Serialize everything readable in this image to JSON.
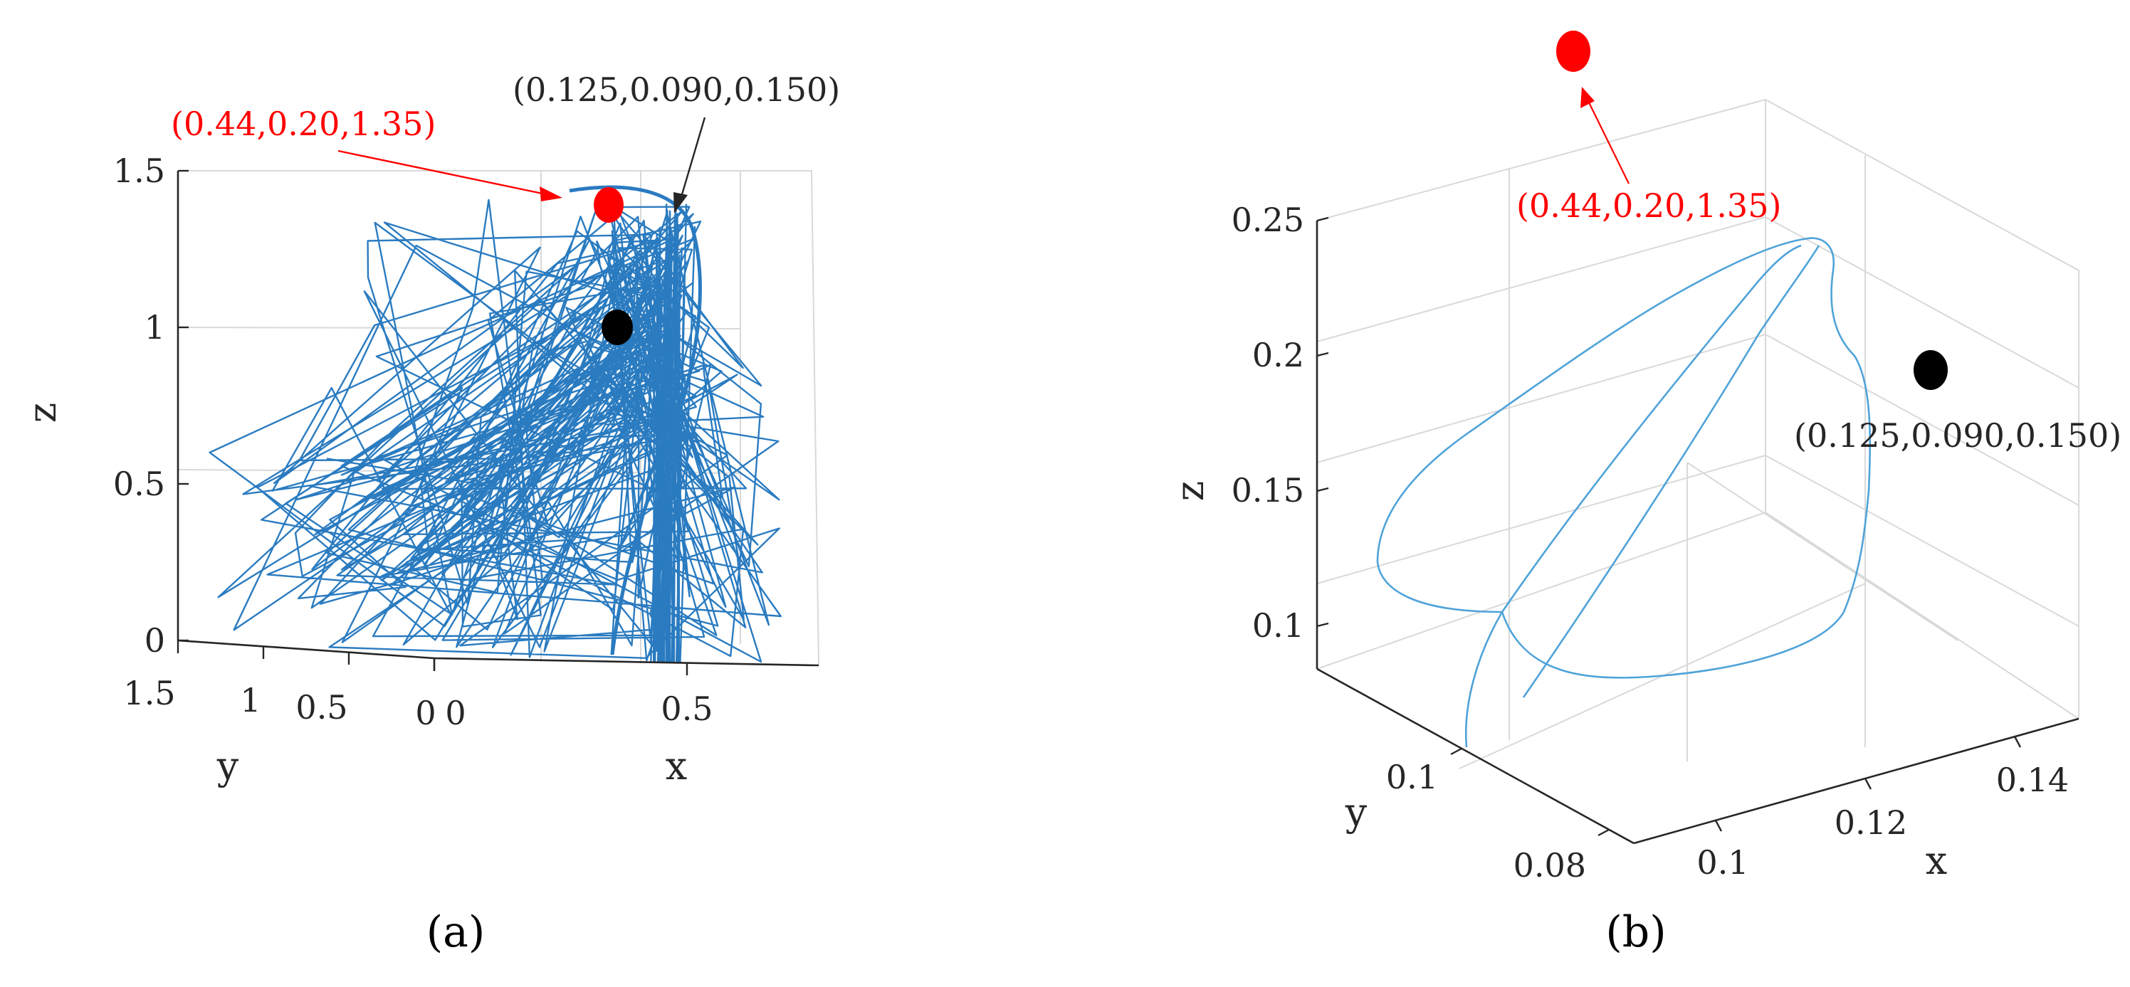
{
  "chart_data": [
    {
      "type": "line3d",
      "panel_label": "(a)",
      "xlabel": "x",
      "ylabel": "y",
      "zlabel": "z",
      "xlim": [
        0,
        0.75
      ],
      "ylim": [
        0,
        1.5
      ],
      "zlim": [
        0,
        1.5
      ],
      "x_ticks": [
        "0",
        "0.5"
      ],
      "y_ticks": [
        "1.5",
        "1",
        "0.5",
        "0"
      ],
      "z_ticks": [
        "0",
        "0.5",
        "1",
        "1.5"
      ],
      "grid": true,
      "series": [
        {
          "type": "trajectory",
          "color": "#1f77b4",
          "description_points": "dense chaotic trajectory spanning x 0-0.7, y 0-1.5, z 0-1.45"
        }
      ],
      "markers": [
        {
          "role": "red-point",
          "color": "#ff0000",
          "x": 0.44,
          "y": 0.2,
          "z": 1.35
        },
        {
          "role": "black-point",
          "color": "#000000",
          "x": 0.125,
          "y": 0.09,
          "z": 0.15
        }
      ],
      "annotations": [
        {
          "text": "(0.44,0.20,1.35)",
          "color": "#ff0000"
        },
        {
          "text": "(0.125,0.090,0.150)",
          "color": "#000000"
        }
      ]
    },
    {
      "type": "line3d",
      "panel_label": "(b)",
      "xlabel": "x",
      "ylabel": "y",
      "zlabel": "z",
      "xlim": [
        0.09,
        0.15
      ],
      "ylim": [
        0.08,
        0.11
      ],
      "zlim": [
        0.08,
        0.25
      ],
      "x_ticks": [
        "0.1",
        "0.12",
        "0.14"
      ],
      "y_ticks": [
        "0.08",
        "0.1"
      ],
      "z_ticks": [
        "0.1",
        "0.15",
        "0.2",
        "0.25"
      ],
      "grid": true,
      "series": [
        {
          "type": "trajectory",
          "color": "#4fa3d9"
        }
      ],
      "markers": [
        {
          "role": "red-point",
          "color": "#ff0000"
        },
        {
          "role": "black-point",
          "color": "#000000"
        }
      ],
      "annotations": [
        {
          "text": "(0.44,0.20,1.35)",
          "color": "#ff0000"
        },
        {
          "text": "(0.125,0.090,0.150)",
          "color": "#000000"
        }
      ]
    }
  ]
}
